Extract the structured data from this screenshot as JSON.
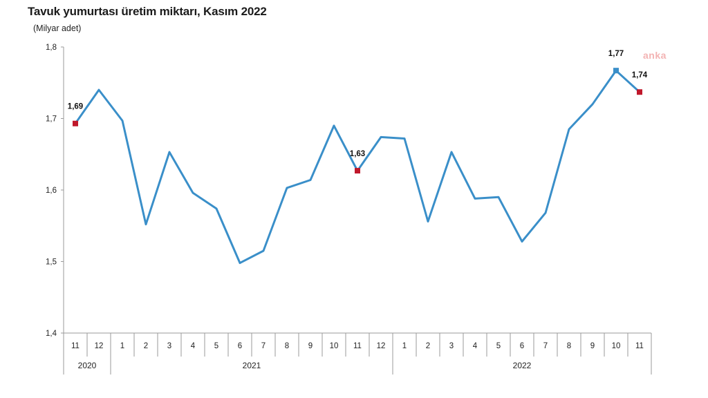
{
  "chart_data": {
    "type": "line",
    "title": "Tavuk yumurtası üretim miktarı, Kasım 2022",
    "ylabel": "(Milyar adet)",
    "ylim": [
      1.4,
      1.8
    ],
    "yticks": [
      "1,4",
      "1,5",
      "1,6",
      "1,7",
      "1,8"
    ],
    "ytick_values": [
      1.4,
      1.5,
      1.6,
      1.7,
      1.8
    ],
    "grid": false,
    "categories": [
      "11",
      "12",
      "1",
      "2",
      "3",
      "4",
      "5",
      "6",
      "7",
      "8",
      "9",
      "10",
      "11",
      "12",
      "1",
      "2",
      "3",
      "4",
      "5",
      "6",
      "7",
      "8",
      "9",
      "10",
      "11"
    ],
    "years": [
      {
        "label": "2020",
        "start": 0,
        "end": 1
      },
      {
        "label": "2021",
        "start": 2,
        "end": 13
      },
      {
        "label": "2022",
        "start": 14,
        "end": 24
      }
    ],
    "series": [
      {
        "color": "#3a8fc9",
        "values": [
          1.693,
          1.74,
          1.697,
          1.552,
          1.653,
          1.596,
          1.574,
          1.498,
          1.515,
          1.603,
          1.614,
          1.69,
          1.627,
          1.674,
          1.672,
          1.556,
          1.653,
          1.588,
          1.59,
          1.528,
          1.568,
          1.685,
          1.72,
          1.767,
          1.737
        ]
      }
    ],
    "markers": [
      {
        "index": 0,
        "label": "1,69",
        "color": "#c0182b"
      },
      {
        "index": 12,
        "label": "1,63",
        "color": "#c0182b"
      },
      {
        "index": 23,
        "label": "1,77",
        "color": "#3a8fc9"
      },
      {
        "index": 24,
        "label": "1,74",
        "color": "#c0182b"
      }
    ]
  },
  "watermark": "anka"
}
